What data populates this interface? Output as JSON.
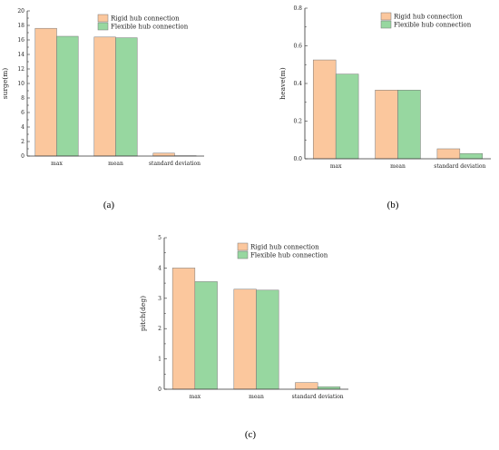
{
  "colors": {
    "rigid": "#fbc79d",
    "flexible": "#97d7a0",
    "bar_edge": "#777777",
    "axis": "#333333"
  },
  "legend": [
    "Rigid hub connection",
    "Flexible hub connection"
  ],
  "chart_data": [
    {
      "type": "bar",
      "panel_label": "(a)",
      "ylabel": "surge(m)",
      "categories": [
        "max",
        "mean",
        "standard deviation"
      ],
      "series": [
        {
          "name": "Rigid hub connection",
          "values": [
            17.6,
            16.4,
            0.4
          ]
        },
        {
          "name": "Flexible hub connection",
          "values": [
            16.5,
            16.3,
            0.05
          ]
        }
      ],
      "ylim": [
        0,
        20
      ],
      "yticks": [
        0,
        2,
        4,
        6,
        8,
        10,
        12,
        14,
        16,
        18,
        20
      ],
      "ytick_labels": [
        "0",
        "2",
        "4",
        "6",
        "8",
        "10",
        "12",
        "14",
        "16",
        "18",
        "20"
      ],
      "grid": false,
      "legend_position": "top-right"
    },
    {
      "type": "bar",
      "panel_label": "(b)",
      "ylabel": "heave(m)",
      "categories": [
        "max",
        "mean",
        "standard deviation"
      ],
      "series": [
        {
          "name": "Rigid hub connection",
          "values": [
            0.525,
            0.365,
            0.053
          ]
        },
        {
          "name": "Flexible hub connection",
          "values": [
            0.45,
            0.365,
            0.028
          ]
        }
      ],
      "ylim": [
        0,
        0.8
      ],
      "yticks": [
        0,
        0.2,
        0.4,
        0.6,
        0.8
      ],
      "ytick_labels": [
        "0.0",
        "0.2",
        "0.4",
        "0.6",
        "0.8"
      ],
      "grid": false,
      "legend_position": "top-right"
    },
    {
      "type": "bar",
      "panel_label": "(c)",
      "ylabel": "pitch(deg)",
      "categories": [
        "max",
        "mean",
        "standard deviation"
      ],
      "series": [
        {
          "name": "Rigid hub connection",
          "values": [
            4.0,
            3.3,
            0.22
          ]
        },
        {
          "name": "Flexible hub connection",
          "values": [
            3.55,
            3.27,
            0.08
          ]
        }
      ],
      "ylim": [
        0,
        5
      ],
      "yticks": [
        0,
        1,
        2,
        3,
        4,
        5
      ],
      "ytick_labels": [
        "0",
        "1",
        "2",
        "3",
        "4",
        "5"
      ],
      "grid": false,
      "legend_position": "top-right"
    }
  ]
}
